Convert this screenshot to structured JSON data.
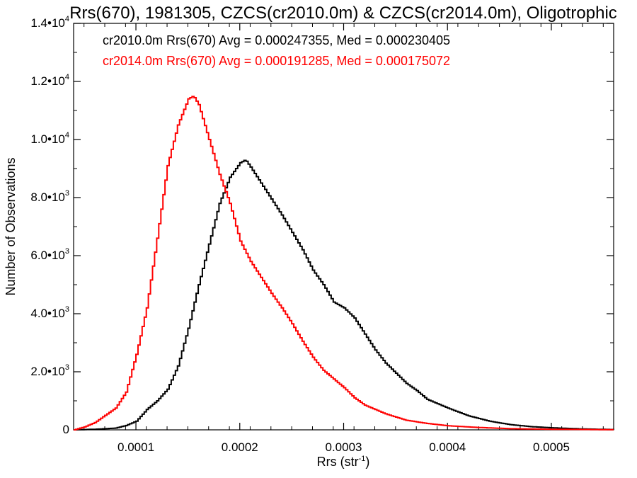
{
  "chart_data": {
    "type": "line",
    "title": "Rrs(670), 1981305, CZCS(cr2010.0m) & CZCS(cr2014.0m), Oligotrophic",
    "xlabel": "Rrs (str",
    "xlabel_sup": "-1",
    "xlabel_close": ")",
    "ylabel": "Number of Observations",
    "xlim": [
      4e-05,
      0.00056
    ],
    "ylim": [
      0,
      14000
    ],
    "x_ticks": [
      {
        "value": 0.0001,
        "label": "0.0001"
      },
      {
        "value": 0.0002,
        "label": "0.0002"
      },
      {
        "value": 0.0003,
        "label": "0.0003"
      },
      {
        "value": 0.0004,
        "label": "0.0004"
      },
      {
        "value": 0.0005,
        "label": "0.0005"
      }
    ],
    "y_ticks": [
      {
        "value": 0,
        "label": "0",
        "sup": ""
      },
      {
        "value": 2000,
        "label": "2.0•10",
        "sup": "3"
      },
      {
        "value": 4000,
        "label": "4.0•10",
        "sup": "3"
      },
      {
        "value": 6000,
        "label": "6.0•10",
        "sup": "3"
      },
      {
        "value": 8000,
        "label": "8.0•10",
        "sup": "3"
      },
      {
        "value": 10000,
        "label": "1.0•10",
        "sup": "4"
      },
      {
        "value": 12000,
        "label": "1.2•10",
        "sup": "4"
      },
      {
        "value": 14000,
        "label": "1.4•10",
        "sup": "4"
      }
    ],
    "grid": false,
    "series": [
      {
        "name": "cr2010.0m",
        "color": "#000000",
        "legend_label": "cr2010.0m Rrs(670) Avg = 0.000247355, Med = 0.000230405",
        "x": [
          4e-05,
          6e-05,
          8e-05,
          9e-05,
          0.0001,
          0.00011,
          0.00012,
          0.00013,
          0.00014,
          0.00015,
          0.00016,
          0.00017,
          0.00018,
          0.00019,
          0.0002,
          0.000205,
          0.00021,
          0.00022,
          0.00023,
          0.00024,
          0.00025,
          0.00026,
          0.00027,
          0.00028,
          0.00029,
          0.0003,
          0.00031,
          0.00032,
          0.00033,
          0.00034,
          0.00035,
          0.00036,
          0.00037,
          0.00038,
          0.0004,
          0.00042,
          0.00044,
          0.00046,
          0.00048,
          0.0005,
          0.00053,
          0.00056
        ],
        "y": [
          0,
          20,
          60,
          150,
          300,
          700,
          1000,
          1400,
          2200,
          3500,
          5000,
          6400,
          7800,
          8700,
          9200,
          9300,
          9050,
          8500,
          7950,
          7400,
          6800,
          6200,
          5500,
          5000,
          4400,
          4200,
          3850,
          3300,
          2750,
          2300,
          1950,
          1600,
          1350,
          1050,
          750,
          480,
          300,
          180,
          110,
          70,
          30,
          10
        ]
      },
      {
        "name": "cr2014.0m",
        "color": "#ff0000",
        "legend_label": "cr2014.0m Rrs(670) Avg = 0.000191285, Med = 0.000175072",
        "x": [
          4e-05,
          5e-05,
          6e-05,
          7e-05,
          8e-05,
          9e-05,
          0.0001,
          0.00011,
          0.00012,
          0.00013,
          0.00014,
          0.00015,
          0.000155,
          0.00016,
          0.00017,
          0.00018,
          0.00019,
          0.0002,
          0.00021,
          0.00022,
          0.00023,
          0.00024,
          0.00025,
          0.00026,
          0.00027,
          0.00028,
          0.00029,
          0.0003,
          0.00031,
          0.00032,
          0.00034,
          0.00036,
          0.00038,
          0.0004,
          0.00043,
          0.00046,
          0.0005,
          0.00056
        ],
        "y": [
          0,
          100,
          250,
          500,
          750,
          1300,
          2600,
          4200,
          6600,
          9100,
          10500,
          11400,
          11500,
          11200,
          10000,
          8800,
          7800,
          6500,
          5800,
          5250,
          4700,
          4200,
          3650,
          3050,
          2500,
          2050,
          1750,
          1450,
          1100,
          850,
          550,
          330,
          220,
          140,
          80,
          40,
          20,
          5
        ]
      }
    ]
  }
}
